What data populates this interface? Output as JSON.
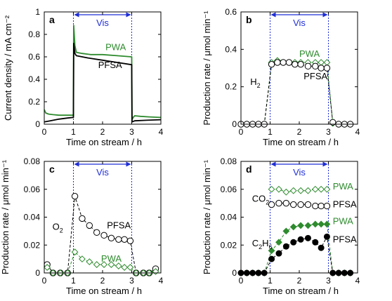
{
  "chart_data": [
    {
      "panel": "a",
      "type": "line",
      "xlabel": "Time on stream / h",
      "ylabel": "Current density / mA cm⁻²",
      "xlim": [
        0,
        4
      ],
      "ylim": [
        0,
        1
      ],
      "xticks": [
        0,
        1,
        2,
        3,
        4
      ],
      "yticks": [
        0,
        0.2,
        0.4,
        0.6,
        0.8,
        1
      ],
      "ytick_labels": [
        "0",
        "0.2",
        "0.4",
        "0.6",
        "0.8",
        "1"
      ],
      "vis_label": "Vis",
      "vis_range": [
        1,
        3
      ],
      "series": [
        {
          "name": "PWA",
          "color": "#2e8b2e",
          "x": [
            0,
            0.05,
            0.15,
            0.3,
            0.5,
            0.7,
            0.9,
            0.99,
            1.0,
            1.01,
            1.05,
            1.1,
            1.3,
            1.6,
            2.0,
            2.5,
            2.99,
            3.0,
            3.01,
            3.05,
            3.1,
            3.3,
            3.6,
            4.0
          ],
          "y": [
            0.13,
            0.1,
            0.09,
            0.085,
            0.08,
            0.08,
            0.08,
            0.08,
            0.08,
            0.88,
            0.7,
            0.64,
            0.63,
            0.62,
            0.62,
            0.61,
            0.6,
            0.6,
            0.04,
            0.06,
            0.075,
            0.07,
            0.065,
            0.06
          ]
        },
        {
          "name": "PFSA",
          "color": "#000000",
          "x": [
            0,
            0.2,
            0.5,
            0.8,
            0.99,
            1.0,
            1.01,
            1.05,
            1.1,
            1.5,
            2.0,
            2.5,
            2.99,
            3.0,
            3.01,
            3.1,
            3.5,
            4.0
          ],
          "y": [
            0.02,
            0.03,
            0.045,
            0.055,
            0.06,
            0.06,
            0.72,
            0.63,
            0.61,
            0.59,
            0.57,
            0.55,
            0.53,
            0.53,
            0.02,
            0.03,
            0.035,
            0.04
          ]
        }
      ],
      "labels": [
        {
          "text": "PWA",
          "x": 2.1,
          "y": 0.66
        },
        {
          "text": "PFSA",
          "x": 1.85,
          "y": 0.5
        }
      ]
    },
    {
      "panel": "b",
      "type": "line",
      "xlabel": "Time on stream / h",
      "ylabel": "Production rate / μmol min⁻¹",
      "xlim": [
        0,
        4
      ],
      "ylim": [
        0,
        0.6
      ],
      "xticks": [
        0,
        1,
        2,
        3,
        4
      ],
      "yticks": [
        0,
        0.2,
        0.4,
        0.6
      ],
      "ytick_labels": [
        "0",
        "0.2",
        "0.4",
        "0.6"
      ],
      "vis_label": "Vis",
      "vis_range": [
        1,
        3
      ],
      "series": [
        {
          "name": "PWA",
          "color": "#2e8b2e",
          "marker": "diamond-open",
          "x": [
            0,
            0.2,
            0.4,
            0.6,
            0.8,
            1.05,
            1.25,
            1.45,
            1.65,
            1.85,
            2.05,
            2.3,
            2.55,
            2.75,
            2.95,
            3.15,
            3.35,
            3.55,
            3.75
          ],
          "y": [
            0,
            0,
            0,
            0,
            0,
            0.33,
            0.34,
            0.33,
            0.33,
            0.33,
            0.33,
            0.33,
            0.33,
            0.33,
            0.33,
            0.005,
            0,
            0,
            0
          ]
        },
        {
          "name": "PFSA",
          "color": "#000000",
          "marker": "circle-open",
          "x": [
            0,
            0.2,
            0.4,
            0.6,
            0.8,
            1.05,
            1.25,
            1.45,
            1.65,
            1.85,
            2.05,
            2.3,
            2.55,
            2.75,
            2.95,
            3.15,
            3.35,
            3.55,
            3.75
          ],
          "y": [
            0,
            0,
            0,
            0,
            0,
            0.32,
            0.33,
            0.33,
            0.33,
            0.32,
            0.32,
            0.31,
            0.31,
            0.3,
            0.3,
            0.01,
            0,
            0,
            0
          ]
        }
      ],
      "labels": [
        {
          "text": "PWA",
          "x": 2.0,
          "y": 0.36
        },
        {
          "text": "PFSA",
          "x": 2.15,
          "y": 0.24
        },
        {
          "text": "H",
          "sub": "2",
          "x": 0.32,
          "y": 0.21
        }
      ]
    },
    {
      "panel": "c",
      "type": "line",
      "xlabel": "Time on stream / h",
      "ylabel": "Production rate / μmol min⁻¹",
      "xlim": [
        0,
        4
      ],
      "ylim": [
        0,
        0.08
      ],
      "xticks": [
        0,
        1,
        2,
        3,
        4
      ],
      "yticks": [
        0,
        0.02,
        0.04,
        0.06,
        0.08
      ],
      "ytick_labels": [
        "0",
        "0.02",
        "0.04",
        "0.06",
        "0.08"
      ],
      "vis_label": "Vis",
      "vis_range": [
        1,
        3
      ],
      "series": [
        {
          "name": "PFSA",
          "color": "#000000",
          "marker": "circle-open",
          "x": [
            0.1,
            0.3,
            0.55,
            0.8,
            1.05,
            1.3,
            1.55,
            1.8,
            2.05,
            2.3,
            2.55,
            2.75,
            2.95,
            3.15,
            3.4,
            3.6,
            3.82
          ],
          "y": [
            0.006,
            0.0,
            0.0,
            0.0,
            0.055,
            0.039,
            0.034,
            0.029,
            0.027,
            0.025,
            0.024,
            0.024,
            0.023,
            0.0,
            0.0,
            0.0,
            0.003
          ]
        },
        {
          "name": "PWA",
          "color": "#2e8b2e",
          "marker": "diamond-open",
          "x": [
            0.1,
            0.3,
            0.55,
            0.8,
            1.05,
            1.3,
            1.55,
            1.8,
            2.05,
            2.3,
            2.55,
            2.75,
            2.95,
            3.15,
            3.4,
            3.6,
            3.82
          ],
          "y": [
            0.004,
            0.0,
            0.0,
            0.0,
            0.015,
            0.01,
            0.008,
            0.006,
            0.006,
            0.006,
            0.005,
            0.004,
            0.004,
            0.0,
            0.0,
            0.0,
            0.001
          ]
        }
      ],
      "labels": [
        {
          "text": "PFSA",
          "x": 2.15,
          "y": 0.032
        },
        {
          "text": "PWA",
          "x": 1.95,
          "y": 0.008
        },
        {
          "text": "O",
          "sub": "2",
          "x": 0.28,
          "y": 0.031
        }
      ]
    },
    {
      "panel": "d",
      "type": "line",
      "xlabel": "Time on stream / h",
      "ylabel": "Production rate / μmol min⁻¹",
      "xlim": [
        0,
        4
      ],
      "ylim": [
        0,
        0.08
      ],
      "xticks": [
        0,
        1,
        2,
        3,
        4
      ],
      "yticks": [
        0,
        0.02,
        0.04,
        0.06,
        0.08
      ],
      "ytick_labels": [
        "0",
        "0.02",
        "0.04",
        "0.06",
        "0.08"
      ],
      "vis_label": "Vis",
      "vis_range": [
        1,
        3
      ],
      "series": [
        {
          "name": "PWA",
          "color": "#2e8b2e",
          "marker": "diamond-open",
          "x": [
            1.05,
            1.3,
            1.55,
            1.8,
            2.05,
            2.3,
            2.55,
            2.75,
            2.95
          ],
          "y": [
            0.06,
            0.06,
            0.058,
            0.059,
            0.059,
            0.059,
            0.06,
            0.06,
            0.06
          ]
        },
        {
          "name": "PFSA",
          "color": "#000000",
          "marker": "circle-open",
          "x": [
            1.05,
            1.3,
            1.55,
            1.8,
            2.05,
            2.3,
            2.55,
            2.75,
            2.95
          ],
          "y": [
            0.049,
            0.05,
            0.05,
            0.049,
            0.049,
            0.049,
            0.048,
            0.048,
            0.048
          ]
        },
        {
          "name": "PWA",
          "color": "#2e8b2e",
          "marker": "diamond-filled",
          "x": [
            0,
            0.2,
            0.4,
            0.6,
            0.8,
            1.05,
            1.3,
            1.55,
            1.8,
            2.05,
            2.3,
            2.55,
            2.75,
            2.95,
            3.15,
            3.35,
            3.55,
            3.75
          ],
          "y": [
            0,
            0,
            0,
            0,
            0,
            0.016,
            0.022,
            0.03,
            0.033,
            0.034,
            0.034,
            0.035,
            0.035,
            0.035,
            0,
            0,
            0,
            0
          ]
        },
        {
          "name": "PFSA",
          "color": "#000000",
          "marker": "circle-filled",
          "x": [
            0,
            0.2,
            0.4,
            0.6,
            0.8,
            1.05,
            1.3,
            1.55,
            1.8,
            2.05,
            2.3,
            2.55,
            2.75,
            2.95,
            3.15,
            3.35,
            3.55,
            3.75
          ],
          "y": [
            0,
            0,
            0,
            0,
            0,
            0.01,
            0.014,
            0.019,
            0.022,
            0.024,
            0.025,
            0.022,
            0.018,
            0.026,
            0,
            0,
            0,
            0
          ]
        }
      ],
      "labels": [
        {
          "text": "PWA",
          "x": 3.15,
          "y": 0.06
        },
        {
          "text": "PFSA",
          "x": 3.15,
          "y": 0.047
        },
        {
          "text": "PWA",
          "x": 3.15,
          "y": 0.035
        },
        {
          "text": "PFSA",
          "x": 3.15,
          "y": 0.022
        },
        {
          "text": "CO",
          "sub": "2",
          "x": 0.38,
          "y": 0.051
        },
        {
          "text": "C",
          "sub": "2",
          "text2": "H",
          "sub2": "6",
          "x": 0.38,
          "y": 0.019
        }
      ]
    }
  ]
}
